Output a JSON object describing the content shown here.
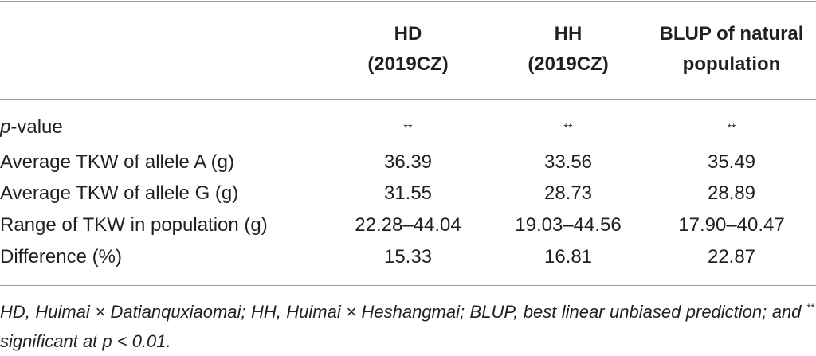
{
  "table": {
    "headers": [
      [
        "HD",
        "(2019CZ)"
      ],
      [
        "HH",
        "(2019CZ)"
      ],
      [
        "BLUP of natural",
        "population"
      ]
    ],
    "rows": [
      {
        "label": [
          "p",
          "-value"
        ],
        "values": [
          "**",
          "**",
          "**"
        ]
      },
      {
        "label": [
          "Average TKW of allele A (g)"
        ],
        "values": [
          "36.39",
          "33.56",
          "35.49"
        ]
      },
      {
        "label": [
          "Average TKW of allele G (g)"
        ],
        "values": [
          "31.55",
          "28.73",
          "28.89"
        ]
      },
      {
        "label": [
          "Range of TKW in population (g)"
        ],
        "values": [
          "22.28–44.04",
          "19.03–44.56",
          "17.90–40.47"
        ]
      },
      {
        "label": [
          "Difference (%)"
        ],
        "values": [
          "15.33",
          "16.81",
          "22.87"
        ]
      }
    ]
  },
  "footnote": {
    "parts": [
      "HD, Huimai × Datianquxiaomai; HH, Huimai × Heshangmai; BLUP, best linear unbiased prediction; and ",
      "**",
      " significant at p < 0.01."
    ]
  }
}
